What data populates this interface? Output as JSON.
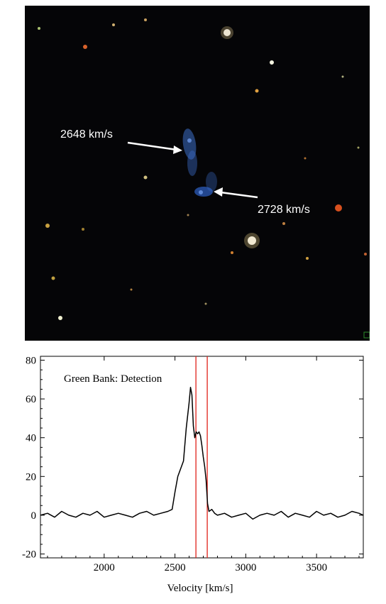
{
  "image_panel": {
    "annotations": [
      {
        "label": "2648 km/s"
      },
      {
        "label": "2728 km/s"
      }
    ]
  },
  "chart_data": {
    "type": "line",
    "title": "Green Bank: Detection",
    "xlabel": "Velocity [km/s]",
    "ylabel": "",
    "xlim": [
      1550,
      3830
    ],
    "ylim": [
      -22,
      82
    ],
    "xticks": [
      2000,
      2500,
      3000,
      3500
    ],
    "yticks": [
      -20,
      0,
      20,
      40,
      60,
      80
    ],
    "grid": false,
    "vertical_lines": [
      2648,
      2728
    ],
    "series_color": "#000000",
    "marker_color": "#e0201a",
    "series": [
      {
        "x": [
          1550,
          1600,
          1650,
          1700,
          1750,
          1800,
          1850,
          1900,
          1950,
          2000,
          2050,
          2100,
          2150,
          2200,
          2250,
          2300,
          2350,
          2400,
          2450,
          2480,
          2500,
          2520,
          2540,
          2560,
          2580,
          2600,
          2610,
          2620,
          2630,
          2640,
          2650,
          2660,
          2670,
          2680,
          2690,
          2700,
          2710,
          2720,
          2730,
          2740,
          2760,
          2780,
          2800,
          2850,
          2900,
          2950,
          3000,
          3050,
          3100,
          3150,
          3200,
          3250,
          3300,
          3350,
          3400,
          3450,
          3500,
          3550,
          3600,
          3650,
          3700,
          3750,
          3800,
          3830
        ],
        "y": [
          0,
          1,
          -1,
          2,
          0,
          -1,
          1,
          0,
          2,
          -1,
          0,
          1,
          0,
          -1,
          1,
          2,
          0,
          1,
          2,
          3,
          12,
          20,
          24,
          28,
          45,
          58,
          66,
          62,
          46,
          40,
          43,
          42,
          43,
          41,
          36,
          30,
          25,
          18,
          6,
          2,
          3,
          1,
          0,
          1,
          -1,
          0,
          1,
          -2,
          0,
          1,
          0,
          2,
          -1,
          1,
          0,
          -1,
          2,
          0,
          1,
          -1,
          0,
          2,
          1,
          0
        ]
      }
    ]
  }
}
